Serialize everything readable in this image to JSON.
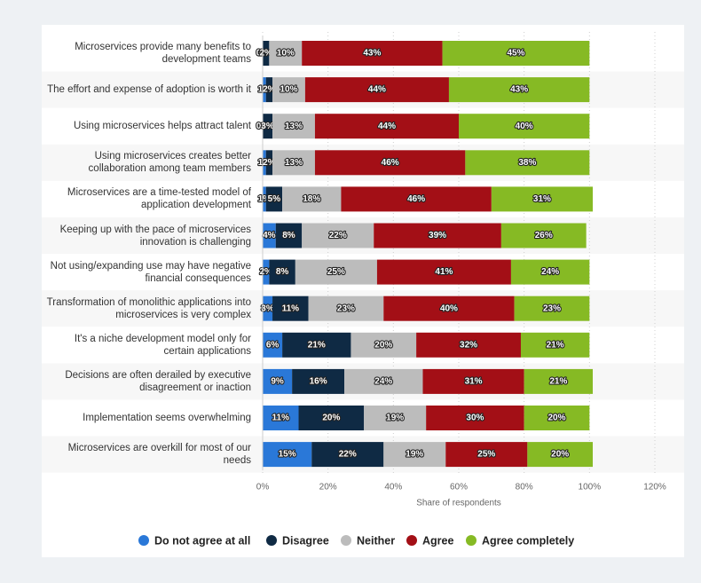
{
  "chart_data": {
    "type": "stacked-bar-horizontal",
    "x_label": "Share of respondents",
    "categories": [
      "Microservices provide many benefits to development teams",
      "The effort and expense of adoption is worth it",
      "Using microservices helps attract talent",
      "Using microservices creates better collaboration among team members",
      "Microservices are a time-tested model of application development",
      "Keeping up with the pace of microservices innovation is challenging",
      "Not using/expanding use may have negative financial consequences",
      "Transformation of monolithic applications into microservices is very complex",
      "It's a niche development model only for certain applications",
      "Decisions are often derailed by executive disagreement or inaction",
      "Implementation seems overwhelming",
      "Microservices are overkill for most of our needs"
    ],
    "series": [
      {
        "name": "Do not agree at all",
        "color": "#2a78d8",
        "values": [
          0,
          1,
          0,
          1,
          1,
          4,
          2,
          3,
          6,
          9,
          11,
          15
        ],
        "value_labels": [
          "0%",
          "1%",
          "0%",
          "1%",
          "1%",
          "4%",
          "2%",
          "3%",
          "6%",
          "9%",
          "11%",
          "15%"
        ]
      },
      {
        "name": "Disagree",
        "color": "#0f2a44",
        "values": [
          2,
          2,
          3,
          2,
          5,
          8,
          8,
          11,
          21,
          16,
          20,
          22
        ],
        "value_labels": [
          "2%",
          "2%",
          "3%",
          "2%",
          "5%",
          "8%",
          "8%",
          "11%",
          "21%",
          "16%",
          "20%",
          "22%"
        ]
      },
      {
        "name": "Neither",
        "color": "#bcbcbc",
        "values": [
          10,
          10,
          13,
          13,
          18,
          22,
          25,
          23,
          20,
          24,
          19,
          19
        ],
        "value_labels": [
          "10%",
          "10%",
          "13%",
          "13%",
          "18%",
          "22%",
          "25%",
          "23%",
          "20%",
          "24%",
          "19%",
          "19%"
        ]
      },
      {
        "name": "Agree",
        "color": "#a30f16",
        "values": [
          43,
          44,
          44,
          46,
          46,
          39,
          41,
          40,
          32,
          31,
          30,
          25
        ],
        "value_labels": [
          "43%",
          "44%",
          "44%",
          "46%",
          "46%",
          "39%",
          "41%",
          "40%",
          "32%",
          "31%",
          "30%",
          "25%"
        ]
      },
      {
        "name": "Agree completely",
        "color": "#86ba24",
        "values": [
          45,
          43,
          40,
          38,
          31,
          26,
          24,
          23,
          21,
          21,
          20,
          20
        ],
        "value_labels": [
          "45%",
          "43%",
          "40%",
          "38%",
          "31%",
          "26%",
          "24%",
          "23%",
          "21%",
          "21%",
          "20%",
          "20%"
        ]
      }
    ],
    "xlim": [
      0,
      120
    ],
    "xticks": [
      {
        "value": 0,
        "label": "0%"
      },
      {
        "value": 20,
        "label": "20%"
      },
      {
        "value": 40,
        "label": "40%"
      },
      {
        "value": 60,
        "label": "60%"
      },
      {
        "value": 80,
        "label": "80%"
      },
      {
        "value": 100,
        "label": "100%"
      },
      {
        "value": 120,
        "label": "120%"
      }
    ],
    "grid": true,
    "legend": "bottom"
  }
}
